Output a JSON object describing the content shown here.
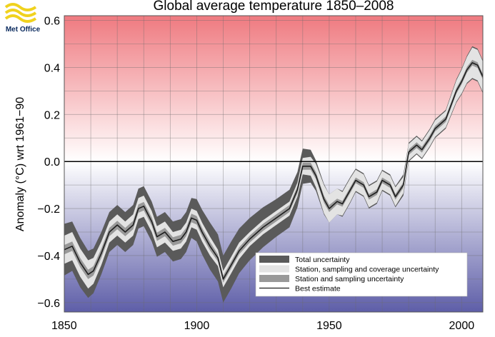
{
  "branding": {
    "logo_icon": "met-office-waves-logo",
    "logo_text": "Met Office",
    "logo_color": "#f0d21e"
  },
  "chart_data": {
    "type": "line",
    "title": "Global average temperature 1850–2008",
    "xlabel": "",
    "ylabel": "Anomaly (°C) wrt 1961−90",
    "xlim": [
      1850,
      2008
    ],
    "ylim": [
      -0.64,
      0.62
    ],
    "xticks": [
      1850,
      1900,
      1950,
      2000
    ],
    "xtick_labels": [
      "1850",
      "1900",
      "1950",
      "2000"
    ],
    "yticks": [
      -0.6,
      -0.4,
      -0.2,
      0.0,
      0.2,
      0.4,
      0.6
    ],
    "ytick_labels": [
      "−0.6",
      "−0.4",
      "−0.2",
      "0.0",
      "0.2",
      "0.4",
      "0.6"
    ],
    "grid": true,
    "background": "vertical gradient: red above 0.0, white at 0.0, blue below 0.0",
    "colors": {
      "warm": "#ef7a80",
      "cool": "#5e5ea8",
      "total_uncertainty": "#5a5a5a",
      "coverage_uncertainty": "#e3e3e3",
      "sampling_uncertainty": "#999999",
      "best_estimate": "#1e1e1e"
    },
    "legend_position": "lower-right",
    "legend": [
      {
        "label": "Total uncertainty",
        "color": "#5a5a5a"
      },
      {
        "label": "Station, sampling and coverage uncertainty",
        "color": "#e3e3e3"
      },
      {
        "label": "Station and sampling uncertainty",
        "color": "#999999"
      },
      {
        "label": "Best estimate",
        "color": "#1e1e1e"
      }
    ],
    "series": {
      "x": [
        1850,
        1853,
        1856,
        1859,
        1861,
        1864,
        1867,
        1870,
        1873,
        1876,
        1878,
        1880,
        1883,
        1885,
        1888,
        1891,
        1894,
        1896,
        1898,
        1900,
        1902,
        1905,
        1908,
        1910,
        1913,
        1916,
        1920,
        1925,
        1930,
        1935,
        1938,
        1940,
        1943,
        1945,
        1948,
        1950,
        1953,
        1955,
        1958,
        1960,
        1963,
        1965,
        1968,
        1970,
        1973,
        1975,
        1978,
        1980,
        1983,
        1985,
        1988,
        1990,
        1992,
        1994,
        1996,
        1998,
        2000,
        2002,
        2004,
        2006,
        2008
      ],
      "best_estimate": [
        -0.375,
        -0.36,
        -0.43,
        -0.48,
        -0.465,
        -0.39,
        -0.3,
        -0.27,
        -0.3,
        -0.27,
        -0.2,
        -0.19,
        -0.255,
        -0.32,
        -0.3,
        -0.34,
        -0.33,
        -0.3,
        -0.24,
        -0.25,
        -0.3,
        -0.36,
        -0.41,
        -0.5,
        -0.44,
        -0.38,
        -0.33,
        -0.28,
        -0.24,
        -0.2,
        -0.12,
        -0.02,
        -0.02,
        -0.06,
        -0.16,
        -0.2,
        -0.17,
        -0.18,
        -0.12,
        -0.08,
        -0.1,
        -0.15,
        -0.13,
        -0.08,
        -0.1,
        -0.15,
        -0.1,
        0.04,
        0.07,
        0.05,
        0.1,
        0.14,
        0.16,
        0.18,
        0.24,
        0.3,
        0.34,
        0.39,
        0.42,
        0.41,
        0.36
      ],
      "total_uncertainty_halfwidth": [
        0.11,
        0.105,
        0.105,
        0.1,
        0.095,
        0.09,
        0.085,
        0.085,
        0.085,
        0.085,
        0.085,
        0.085,
        0.085,
        0.085,
        0.085,
        0.085,
        0.085,
        0.085,
        0.085,
        0.09,
        0.095,
        0.1,
        0.1,
        0.1,
        0.1,
        0.095,
        0.09,
        0.085,
        0.08,
        0.08,
        0.075,
        0.075,
        0.07,
        0.065,
        0.065,
        0.06,
        0.055,
        0.055,
        0.055,
        0.05,
        0.05,
        0.05,
        0.05,
        0.045,
        0.045,
        0.045,
        0.045,
        0.04,
        0.04,
        0.04,
        0.04,
        0.04,
        0.04,
        0.04,
        0.045,
        0.05,
        0.055,
        0.06,
        0.07,
        0.07,
        0.07
      ],
      "coverage_uncertainty_halfwidth": [
        0.06,
        0.06,
        0.06,
        0.06,
        0.055,
        0.05,
        0.045,
        0.045,
        0.045,
        0.045,
        0.045,
        0.045,
        0.045,
        0.045,
        0.045,
        0.04,
        0.04,
        0.04,
        0.04,
        0.04,
        0.04,
        0.04,
        0.035,
        0.035,
        0.035,
        0.035,
        0.03,
        0.03,
        0.03,
        0.03,
        0.03,
        0.035,
        0.04,
        0.05,
        0.06,
        0.06,
        0.055,
        0.05,
        0.05,
        0.045,
        0.045,
        0.045,
        0.045,
        0.04,
        0.04,
        0.04,
        0.035,
        0.035,
        0.035,
        0.035,
        0.035,
        0.035,
        0.035,
        0.035,
        0.04,
        0.045,
        0.05,
        0.055,
        0.065,
        0.065,
        0.065
      ],
      "sampling_uncertainty_halfwidth": [
        0.02,
        0.02,
        0.02,
        0.02,
        0.02,
        0.02,
        0.018,
        0.018,
        0.018,
        0.018,
        0.018,
        0.018,
        0.018,
        0.018,
        0.018,
        0.018,
        0.018,
        0.018,
        0.018,
        0.018,
        0.018,
        0.018,
        0.015,
        0.015,
        0.015,
        0.015,
        0.015,
        0.015,
        0.015,
        0.015,
        0.015,
        0.015,
        0.015,
        0.015,
        0.015,
        0.015,
        0.012,
        0.012,
        0.012,
        0.012,
        0.012,
        0.012,
        0.012,
        0.012,
        0.012,
        0.012,
        0.012,
        0.012,
        0.012,
        0.012,
        0.012,
        0.012,
        0.012,
        0.012,
        0.012,
        0.012,
        0.012,
        0.012,
        0.012,
        0.012,
        0.012
      ]
    }
  }
}
